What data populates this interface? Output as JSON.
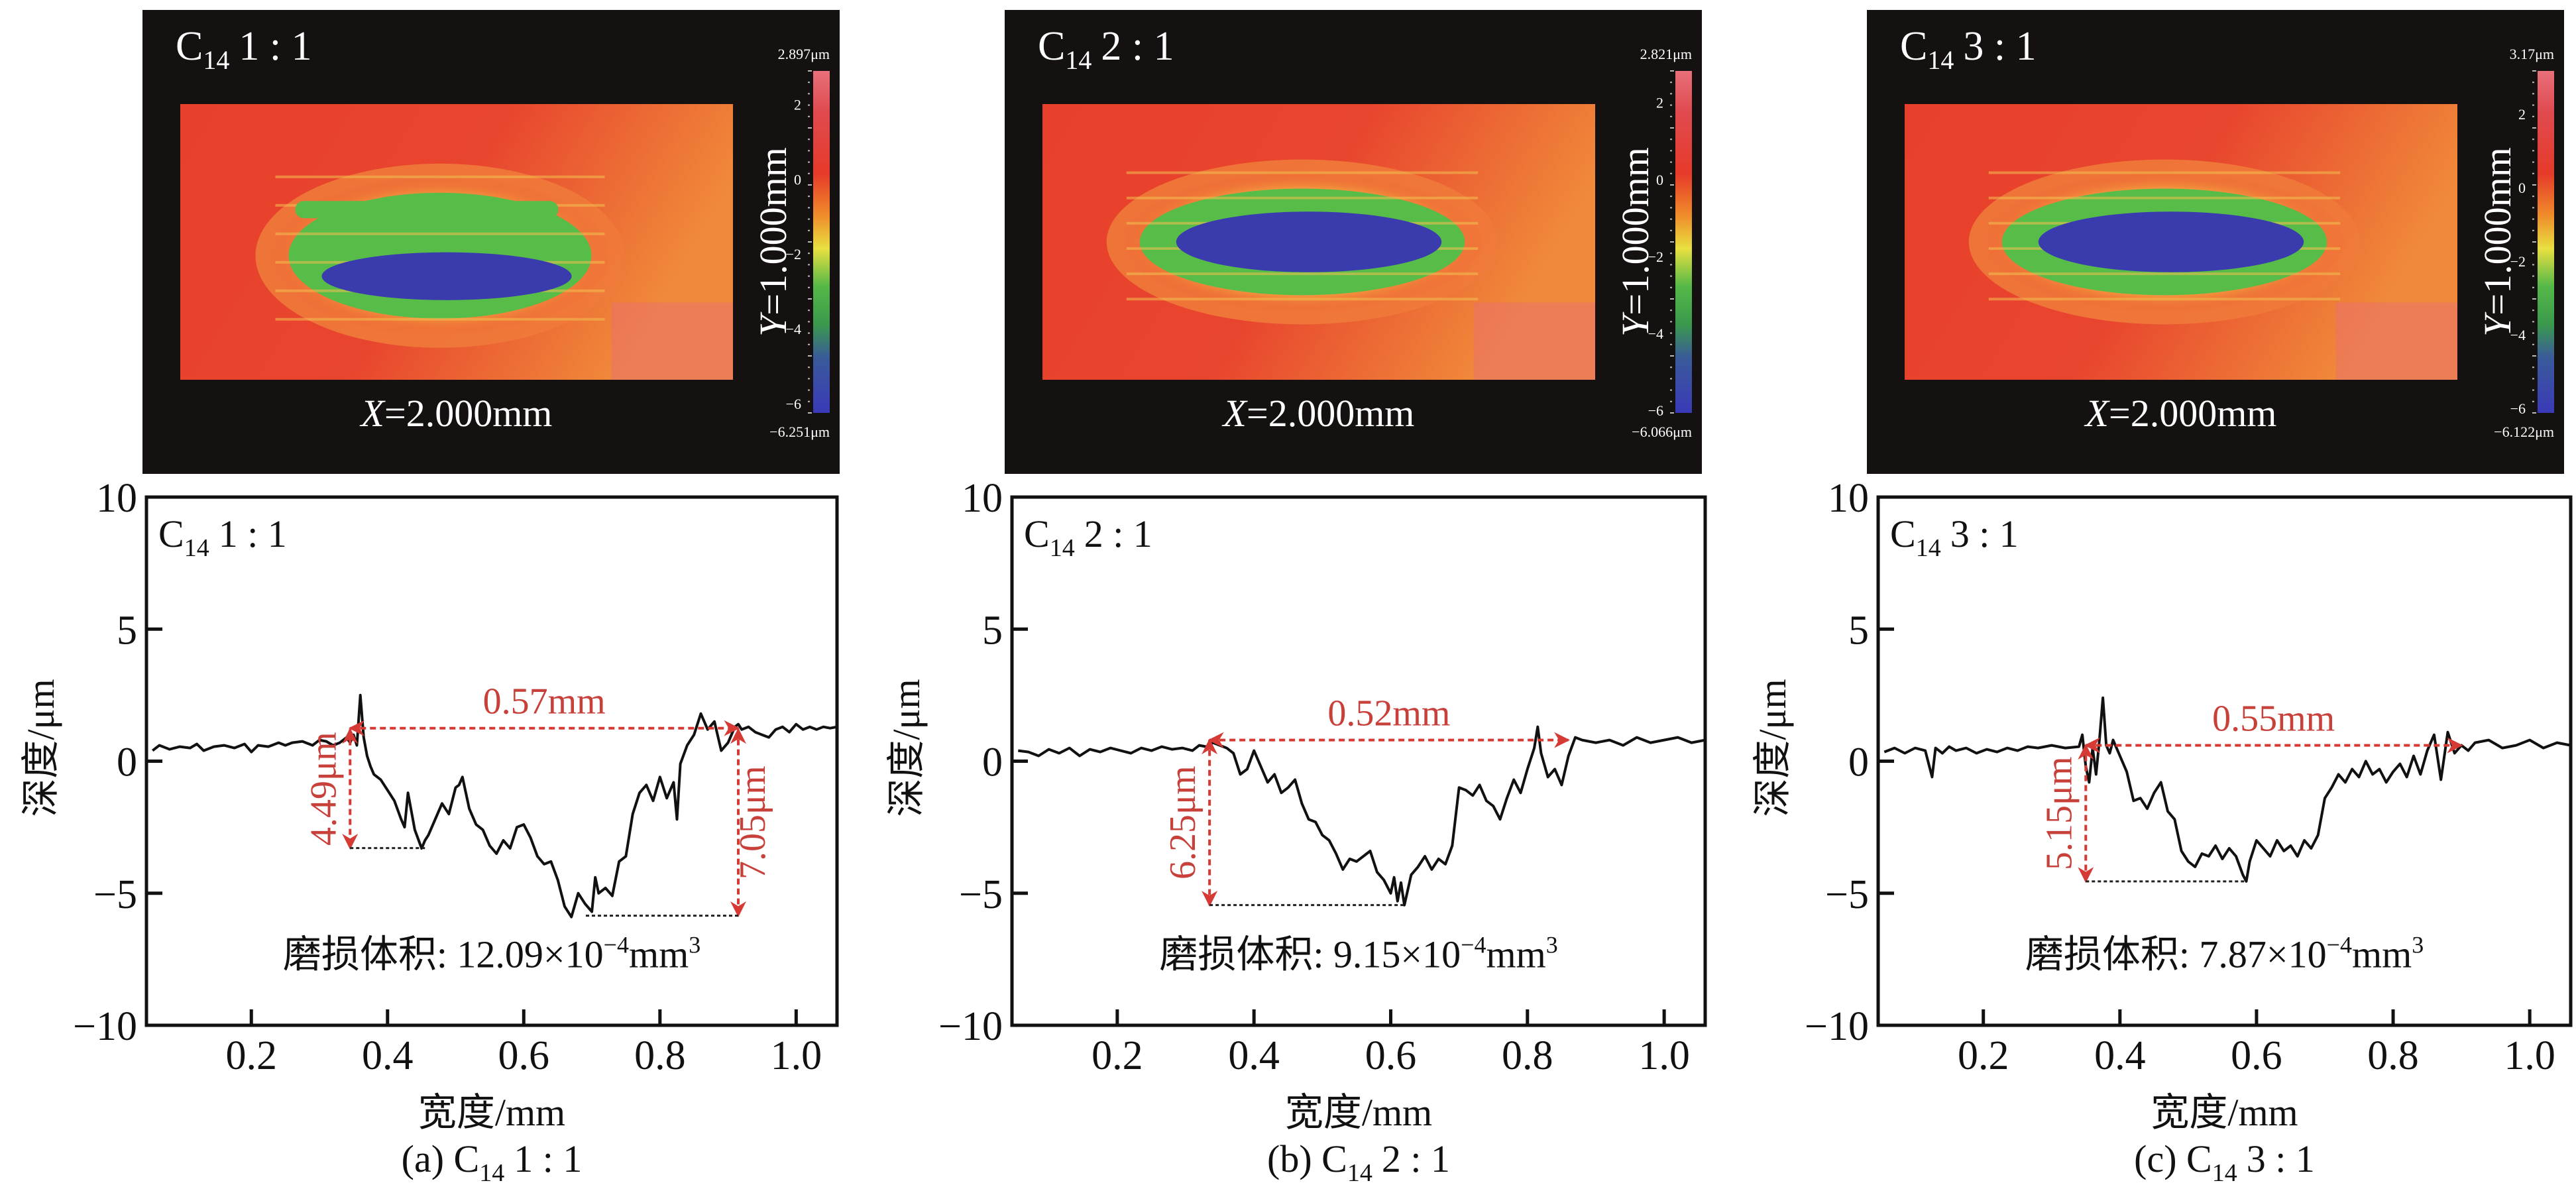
{
  "figure": {
    "panels": [
      {
        "id": "a",
        "map": {
          "title_main": "C",
          "title_sub": "14",
          "title_ratio": "1 : 1",
          "x_label_italic": "X",
          "x_label_rest": "=2.000mm",
          "y_label_italic": "Y",
          "y_label_rest": "=1.000mm",
          "colorbar_max_label": "2.897μm",
          "colorbar_min_label": "−6.251μm",
          "colorbar_max": 2.897,
          "colorbar_min": -6.251,
          "colorbar_ticks": [
            "2",
            "0",
            "−2",
            "−4",
            "−6"
          ]
        },
        "caption_prefix": "(a) C",
        "caption_sub": "14",
        "caption_ratio": "1 : 1"
      },
      {
        "id": "b",
        "map": {
          "title_main": "C",
          "title_sub": "14",
          "title_ratio": "2 : 1",
          "x_label_italic": "X",
          "x_label_rest": "=2.000mm",
          "y_label_italic": "Y",
          "y_label_rest": "=1.000mm",
          "colorbar_max_label": "2.821μm",
          "colorbar_min_label": "−6.066μm",
          "colorbar_max": 2.821,
          "colorbar_min": -6.066,
          "colorbar_ticks": [
            "2",
            "0",
            "−2",
            "−4",
            "−6"
          ]
        },
        "caption_prefix": "(b) C",
        "caption_sub": "14",
        "caption_ratio": "2 : 1"
      },
      {
        "id": "c",
        "map": {
          "title_main": "C",
          "title_sub": "14",
          "title_ratio": "3 : 1",
          "x_label_italic": "X",
          "x_label_rest": "=2.000mm",
          "y_label_italic": "Y",
          "y_label_rest": "=1.000mm",
          "colorbar_max_label": "3.17μm",
          "colorbar_min_label": "−6.122μm",
          "colorbar_max": 3.17,
          "colorbar_min": -6.122,
          "colorbar_ticks": [
            "2",
            "0",
            "−2",
            "−4",
            "−6"
          ]
        },
        "caption_prefix": "(c) C",
        "caption_sub": "14",
        "caption_ratio": "3 : 1"
      }
    ],
    "colors": {
      "map_background": "#141110",
      "profile_line": "#111111",
      "annotation_red": "#d63a35",
      "annotation_text_red": "#c8403a"
    }
  },
  "chart_data": [
    {
      "type": "line",
      "title": "C14 1:1",
      "legend_main": "C",
      "legend_sub": "14",
      "legend_ratio": "1 : 1",
      "xlabel": "宽度/mm",
      "ylabel": "深度/μm",
      "xlim": [
        0.046,
        1.06
      ],
      "ylim": [
        -10,
        10
      ],
      "xticks": [
        0.2,
        0.4,
        0.6,
        0.8,
        1.0
      ],
      "xtick_labels": [
        "0.2",
        "0.4",
        "0.6",
        "0.8",
        "1.0"
      ],
      "yticks": [
        10,
        5,
        0,
        -5,
        -10
      ],
      "ytick_labels": [
        "10",
        "5",
        "0",
        "−5",
        "−10"
      ],
      "grid": false,
      "volume_label": "磨损体积: 12.09×10",
      "volume_exp": "−4",
      "volume_unit": "mm",
      "volume_unit_exp": "3",
      "width_annotation": {
        "label": "0.57mm",
        "x_start": 0.345,
        "x_end": 0.915,
        "y": 1.25
      },
      "depth_annotations": [
        {
          "label": "4.49μm",
          "x": 0.345,
          "y_top": 1.2,
          "y_bottom": -3.29,
          "x_end": 0.455
        },
        {
          "label": "7.05μm",
          "x": 0.915,
          "y_top": 1.2,
          "y_bottom": -5.85,
          "x_end": 0.69
        }
      ],
      "series": [
        {
          "name": "profile",
          "x": [
            0.055,
            0.065,
            0.08,
            0.095,
            0.11,
            0.12,
            0.13,
            0.145,
            0.16,
            0.175,
            0.19,
            0.2,
            0.21,
            0.225,
            0.24,
            0.25,
            0.26,
            0.275,
            0.29,
            0.3,
            0.31,
            0.32,
            0.33,
            0.34,
            0.345,
            0.35,
            0.355,
            0.36,
            0.365,
            0.37,
            0.375,
            0.38,
            0.39,
            0.4,
            0.41,
            0.42,
            0.425,
            0.43,
            0.44,
            0.45,
            0.455,
            0.46,
            0.47,
            0.48,
            0.49,
            0.5,
            0.505,
            0.51,
            0.52,
            0.53,
            0.54,
            0.55,
            0.56,
            0.57,
            0.58,
            0.59,
            0.6,
            0.61,
            0.62,
            0.63,
            0.64,
            0.65,
            0.66,
            0.67,
            0.68,
            0.69,
            0.7,
            0.705,
            0.71,
            0.72,
            0.73,
            0.74,
            0.75,
            0.76,
            0.77,
            0.78,
            0.79,
            0.8,
            0.81,
            0.82,
            0.825,
            0.83,
            0.84,
            0.85,
            0.86,
            0.87,
            0.88,
            0.89,
            0.9,
            0.91,
            0.915,
            0.92,
            0.93,
            0.94,
            0.95,
            0.96,
            0.97,
            0.98,
            0.99,
            1.0,
            1.01,
            1.02,
            1.03,
            1.04,
            1.05,
            1.06
          ],
          "y": [
            0.4,
            0.6,
            0.45,
            0.55,
            0.5,
            0.65,
            0.4,
            0.55,
            0.6,
            0.5,
            0.65,
            0.35,
            0.6,
            0.55,
            0.7,
            0.6,
            0.7,
            0.75,
            0.6,
            0.8,
            0.75,
            0.6,
            0.7,
            0.9,
            0.7,
            1.0,
            0.6,
            2.5,
            0.9,
            0.2,
            -0.2,
            -0.5,
            -0.7,
            -1.1,
            -1.5,
            -2.2,
            -2.5,
            -1.2,
            -2.6,
            -3.3,
            -3.0,
            -2.8,
            -2.2,
            -1.6,
            -2.0,
            -1.0,
            -0.9,
            -0.6,
            -1.8,
            -2.4,
            -2.6,
            -3.2,
            -3.5,
            -3.0,
            -3.3,
            -2.5,
            -2.4,
            -2.9,
            -3.6,
            -3.9,
            -3.8,
            -4.5,
            -5.5,
            -5.9,
            -5.0,
            -5.4,
            -5.7,
            -4.4,
            -5.0,
            -4.8,
            -5.1,
            -3.8,
            -3.6,
            -2.0,
            -1.2,
            -0.9,
            -1.5,
            -0.6,
            -1.4,
            -0.8,
            -2.2,
            -0.1,
            0.6,
            1.0,
            1.8,
            1.2,
            1.5,
            0.4,
            0.7,
            1.3,
            1.4,
            1.2,
            1.3,
            1.1,
            1.0,
            0.9,
            1.2,
            1.3,
            1.1,
            1.4,
            1.2,
            1.3,
            1.2,
            1.3,
            1.25,
            1.3
          ]
        }
      ]
    },
    {
      "type": "line",
      "title": "C14 2:1",
      "legend_main": "C",
      "legend_sub": "14",
      "legend_ratio": "2 : 1",
      "xlabel": "宽度/mm",
      "ylabel": "深度/μm",
      "xlim": [
        0.046,
        1.06
      ],
      "ylim": [
        -10,
        10
      ],
      "xticks": [
        0.2,
        0.4,
        0.6,
        0.8,
        1.0
      ],
      "xtick_labels": [
        "0.2",
        "0.4",
        "0.6",
        "0.8",
        "1.0"
      ],
      "yticks": [
        10,
        5,
        0,
        -5,
        -10
      ],
      "ytick_labels": [
        "10",
        "5",
        "0",
        "−5",
        "−10"
      ],
      "grid": false,
      "volume_label": "磨损体积: 9.15×10",
      "volume_exp": "−4",
      "volume_unit": "mm",
      "volume_unit_exp": "3",
      "width_annotation": {
        "label": "0.52mm",
        "x_start": 0.335,
        "x_end": 0.86,
        "y": 0.8
      },
      "depth_annotations": [
        {
          "label": "6.25μm",
          "x": 0.335,
          "y_top": 0.8,
          "y_bottom": -5.45,
          "x_end": 0.62
        }
      ],
      "series": [
        {
          "name": "profile",
          "x": [
            0.055,
            0.07,
            0.085,
            0.1,
            0.115,
            0.13,
            0.145,
            0.16,
            0.175,
            0.19,
            0.205,
            0.22,
            0.235,
            0.25,
            0.265,
            0.28,
            0.295,
            0.31,
            0.32,
            0.33,
            0.34,
            0.35,
            0.36,
            0.37,
            0.38,
            0.39,
            0.4,
            0.41,
            0.42,
            0.43,
            0.44,
            0.45,
            0.46,
            0.47,
            0.48,
            0.49,
            0.5,
            0.51,
            0.52,
            0.53,
            0.54,
            0.55,
            0.56,
            0.57,
            0.58,
            0.59,
            0.6,
            0.605,
            0.61,
            0.615,
            0.62,
            0.63,
            0.64,
            0.65,
            0.66,
            0.67,
            0.68,
            0.69,
            0.7,
            0.71,
            0.72,
            0.73,
            0.74,
            0.75,
            0.76,
            0.77,
            0.78,
            0.79,
            0.8,
            0.81,
            0.815,
            0.82,
            0.83,
            0.84,
            0.85,
            0.86,
            0.87,
            0.88,
            0.9,
            0.92,
            0.94,
            0.96,
            0.98,
            1.0,
            1.02,
            1.04,
            1.06
          ],
          "y": [
            0.4,
            0.35,
            0.2,
            0.45,
            0.3,
            0.5,
            0.2,
            0.45,
            0.35,
            0.5,
            0.4,
            0.3,
            0.5,
            0.4,
            0.55,
            0.45,
            0.5,
            0.4,
            0.6,
            0.55,
            0.7,
            0.6,
            0.5,
            0.3,
            -0.5,
            -0.3,
            0.4,
            -0.2,
            -0.8,
            -0.5,
            -1.2,
            -1.0,
            -0.7,
            -1.6,
            -2.2,
            -2.3,
            -2.8,
            -3.0,
            -3.5,
            -4.1,
            -3.7,
            -3.8,
            -3.6,
            -3.4,
            -4.2,
            -4.5,
            -5.0,
            -4.4,
            -5.3,
            -4.6,
            -5.45,
            -4.3,
            -4.0,
            -3.6,
            -4.1,
            -3.7,
            -3.9,
            -3.2,
            -1.0,
            -1.1,
            -1.3,
            -0.9,
            -1.5,
            -1.7,
            -2.2,
            -1.4,
            -0.7,
            -1.2,
            -0.3,
            0.5,
            1.3,
            0.3,
            -0.6,
            -0.3,
            -0.9,
            0.2,
            0.9,
            0.8,
            0.7,
            0.8,
            0.6,
            0.9,
            0.7,
            0.8,
            0.9,
            0.7,
            0.8
          ]
        }
      ]
    },
    {
      "type": "line",
      "title": "C14 3:1",
      "legend_main": "C",
      "legend_sub": "14",
      "legend_ratio": "3 : 1",
      "xlabel": "宽度/mm",
      "ylabel": "深度/μm",
      "xlim": [
        0.046,
        1.06
      ],
      "ylim": [
        -10,
        10
      ],
      "xticks": [
        0.2,
        0.4,
        0.6,
        0.8,
        1.0
      ],
      "xtick_labels": [
        "0.2",
        "0.4",
        "0.6",
        "0.8",
        "1.0"
      ],
      "yticks": [
        10,
        5,
        0,
        -5,
        -10
      ],
      "ytick_labels": [
        "10",
        "5",
        "0",
        "−5",
        "−10"
      ],
      "grid": false,
      "volume_label": "磨损体积: 7.87×10",
      "volume_exp": "−4",
      "volume_unit": "mm",
      "volume_unit_exp": "3",
      "width_annotation": {
        "label": "0.55mm",
        "x_start": 0.35,
        "x_end": 0.9,
        "y": 0.6
      },
      "depth_annotations": [
        {
          "label": "5.15μm",
          "x": 0.35,
          "y_top": 0.6,
          "y_bottom": -4.55,
          "x_end": 0.585
        }
      ],
      "series": [
        {
          "name": "profile",
          "x": [
            0.055,
            0.07,
            0.085,
            0.1,
            0.115,
            0.125,
            0.13,
            0.14,
            0.15,
            0.16,
            0.175,
            0.19,
            0.205,
            0.22,
            0.235,
            0.25,
            0.265,
            0.28,
            0.3,
            0.32,
            0.34,
            0.345,
            0.35,
            0.355,
            0.36,
            0.365,
            0.37,
            0.375,
            0.38,
            0.385,
            0.39,
            0.4,
            0.41,
            0.42,
            0.43,
            0.44,
            0.45,
            0.46,
            0.47,
            0.48,
            0.49,
            0.5,
            0.51,
            0.52,
            0.53,
            0.54,
            0.55,
            0.56,
            0.57,
            0.58,
            0.585,
            0.59,
            0.6,
            0.61,
            0.62,
            0.63,
            0.64,
            0.65,
            0.66,
            0.67,
            0.68,
            0.69,
            0.7,
            0.71,
            0.72,
            0.73,
            0.74,
            0.75,
            0.76,
            0.77,
            0.78,
            0.79,
            0.8,
            0.81,
            0.82,
            0.83,
            0.84,
            0.85,
            0.86,
            0.87,
            0.88,
            0.89,
            0.9,
            0.91,
            0.92,
            0.94,
            0.96,
            0.98,
            1.0,
            1.02,
            1.04,
            1.06
          ],
          "y": [
            0.35,
            0.5,
            0.3,
            0.5,
            0.4,
            -0.6,
            0.5,
            0.3,
            0.55,
            0.4,
            0.5,
            0.3,
            0.45,
            0.35,
            0.5,
            0.4,
            0.55,
            0.5,
            0.6,
            0.5,
            0.55,
            1.0,
            -0.2,
            -0.8,
            0.5,
            -0.5,
            0.8,
            2.4,
            0.6,
            0.3,
            0.8,
            0.2,
            -0.4,
            -1.5,
            -1.4,
            -1.8,
            -1.2,
            -0.8,
            -1.9,
            -2.2,
            -3.4,
            -3.8,
            -4.0,
            -3.5,
            -3.6,
            -3.2,
            -3.7,
            -3.3,
            -3.6,
            -4.3,
            -4.55,
            -3.8,
            -3.0,
            -3.3,
            -3.6,
            -3.0,
            -3.4,
            -3.2,
            -3.6,
            -3.0,
            -3.3,
            -2.8,
            -1.4,
            -1.0,
            -0.5,
            -0.8,
            -0.3,
            -0.6,
            0.0,
            -0.5,
            -0.3,
            -0.8,
            -0.4,
            -0.1,
            -0.6,
            0.2,
            -0.5,
            0.4,
            1.0,
            -0.7,
            1.1,
            0.3,
            0.6,
            0.4,
            0.7,
            0.8,
            0.5,
            0.6,
            0.8,
            0.5,
            0.7,
            0.6
          ]
        }
      ]
    }
  ]
}
